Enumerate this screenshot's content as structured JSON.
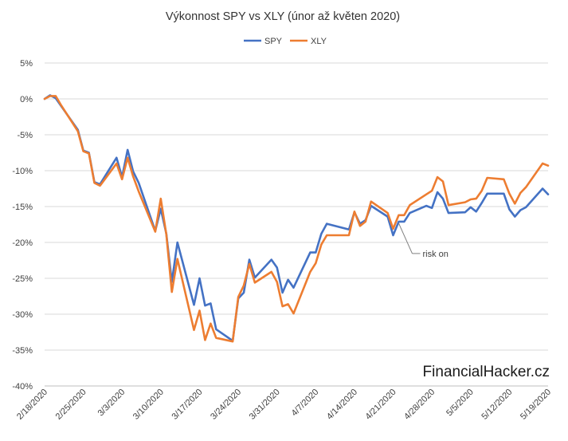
{
  "chart_data": {
    "type": "line",
    "title": "Výkonnost  SPY vs XLY (únor až květen 2020)",
    "xlabel": "",
    "ylabel": "",
    "ylim": [
      -40,
      5
    ],
    "yticks": [
      "5%",
      "0%",
      "-5%",
      "-10%",
      "-15%",
      "-20%",
      "-25%",
      "-30%",
      "-35%",
      "-40%"
    ],
    "x_tick_labels": [
      "2/18/2020",
      "2/25/2020",
      "3/3/2020",
      "3/10/2020",
      "3/17/2020",
      "3/24/2020",
      "3/31/2020",
      "4/7/2020",
      "4/14/2020",
      "4/21/2020",
      "4/28/2020",
      "5/5/2020",
      "5/12/2020",
      "5/19/2020"
    ],
    "x_range": [
      "2/18/2020",
      "5/19/2020"
    ],
    "grid": true,
    "legend_position": "top",
    "series": [
      {
        "name": "SPY",
        "color": "#4472C4",
        "points": [
          [
            "2/18/2020",
            0.0
          ],
          [
            "2/19/2020",
            0.5
          ],
          [
            "2/20/2020",
            0.1
          ],
          [
            "2/21/2020",
            -1.0
          ],
          [
            "2/24/2020",
            -4.3
          ],
          [
            "2/25/2020",
            -7.2
          ],
          [
            "2/26/2020",
            -7.5
          ],
          [
            "2/27/2020",
            -11.6
          ],
          [
            "2/28/2020",
            -11.9
          ],
          [
            "3/2/2020",
            -8.2
          ],
          [
            "3/3/2020",
            -10.9
          ],
          [
            "3/4/2020",
            -7.1
          ],
          [
            "3/5/2020",
            -10.1
          ],
          [
            "3/6/2020",
            -11.7
          ],
          [
            "3/9/2020",
            -18.4
          ],
          [
            "3/10/2020",
            -15.3
          ],
          [
            "3/11/2020",
            -18.8
          ],
          [
            "3/12/2020",
            -25.5
          ],
          [
            "3/13/2020",
            -20.0
          ],
          [
            "3/16/2020",
            -28.7
          ],
          [
            "3/17/2020",
            -25.0
          ],
          [
            "3/18/2020",
            -28.8
          ],
          [
            "3/19/2020",
            -28.5
          ],
          [
            "3/20/2020",
            -32.1
          ],
          [
            "3/23/2020",
            -33.7
          ],
          [
            "3/24/2020",
            -27.8
          ],
          [
            "3/25/2020",
            -27.0
          ],
          [
            "3/26/2020",
            -22.4
          ],
          [
            "3/27/2020",
            -24.9
          ],
          [
            "3/30/2020",
            -22.4
          ],
          [
            "3/31/2020",
            -23.5
          ],
          [
            "4/1/2020",
            -27.0
          ],
          [
            "4/2/2020",
            -25.2
          ],
          [
            "4/3/2020",
            -26.3
          ],
          [
            "4/6/2020",
            -21.4
          ],
          [
            "4/7/2020",
            -21.4
          ],
          [
            "4/8/2020",
            -18.8
          ],
          [
            "4/9/2020",
            -17.4
          ],
          [
            "4/13/2020",
            -18.2
          ],
          [
            "4/14/2020",
            -15.8
          ],
          [
            "4/15/2020",
            -17.4
          ],
          [
            "4/16/2020",
            -16.9
          ],
          [
            "4/17/2020",
            -14.9
          ],
          [
            "4/20/2020",
            -16.4
          ],
          [
            "4/21/2020",
            -19.0
          ],
          [
            "4/22/2020",
            -17.1
          ],
          [
            "4/23/2020",
            -17.1
          ],
          [
            "4/24/2020",
            -15.9
          ],
          [
            "4/27/2020",
            -14.9
          ],
          [
            "4/28/2020",
            -15.2
          ],
          [
            "4/29/2020",
            -13.0
          ],
          [
            "4/30/2020",
            -13.9
          ],
          [
            "5/1/2020",
            -15.9
          ],
          [
            "5/4/2020",
            -15.8
          ],
          [
            "5/5/2020",
            -15.1
          ],
          [
            "5/6/2020",
            -15.7
          ],
          [
            "5/7/2020",
            -14.5
          ],
          [
            "5/8/2020",
            -13.2
          ],
          [
            "5/11/2020",
            -13.2
          ],
          [
            "5/12/2020",
            -15.4
          ],
          [
            "5/13/2020",
            -16.4
          ],
          [
            "5/14/2020",
            -15.5
          ],
          [
            "5/15/2020",
            -15.1
          ],
          [
            "5/18/2020",
            -12.5
          ],
          [
            "5/19/2020",
            -13.3
          ]
        ]
      },
      {
        "name": "XLY",
        "color": "#ED7D31",
        "points": [
          [
            "2/18/2020",
            0.0
          ],
          [
            "2/19/2020",
            0.4
          ],
          [
            "2/20/2020",
            0.4
          ],
          [
            "2/21/2020",
            -0.9
          ],
          [
            "2/24/2020",
            -4.5
          ],
          [
            "2/25/2020",
            -7.3
          ],
          [
            "2/26/2020",
            -7.6
          ],
          [
            "2/27/2020",
            -11.7
          ],
          [
            "2/28/2020",
            -12.1
          ],
          [
            "3/2/2020",
            -9.0
          ],
          [
            "3/3/2020",
            -11.2
          ],
          [
            "3/4/2020",
            -8.2
          ],
          [
            "3/5/2020",
            -10.8
          ],
          [
            "3/6/2020",
            -12.9
          ],
          [
            "3/9/2020",
            -18.5
          ],
          [
            "3/10/2020",
            -13.9
          ],
          [
            "3/11/2020",
            -18.9
          ],
          [
            "3/12/2020",
            -26.9
          ],
          [
            "3/13/2020",
            -22.3
          ],
          [
            "3/16/2020",
            -32.2
          ],
          [
            "3/17/2020",
            -29.5
          ],
          [
            "3/18/2020",
            -33.6
          ],
          [
            "3/19/2020",
            -31.3
          ],
          [
            "3/20/2020",
            -33.3
          ],
          [
            "3/23/2020",
            -33.8
          ],
          [
            "3/24/2020",
            -27.6
          ],
          [
            "3/25/2020",
            -26.0
          ],
          [
            "3/26/2020",
            -23.0
          ],
          [
            "3/27/2020",
            -25.6
          ],
          [
            "3/30/2020",
            -24.1
          ],
          [
            "3/31/2020",
            -25.5
          ],
          [
            "4/1/2020",
            -28.9
          ],
          [
            "4/2/2020",
            -28.6
          ],
          [
            "4/3/2020",
            -29.9
          ],
          [
            "4/6/2020",
            -24.1
          ],
          [
            "4/7/2020",
            -22.9
          ],
          [
            "4/8/2020",
            -20.3
          ],
          [
            "4/9/2020",
            -19.0
          ],
          [
            "4/13/2020",
            -19.0
          ],
          [
            "4/14/2020",
            -15.7
          ],
          [
            "4/15/2020",
            -17.7
          ],
          [
            "4/16/2020",
            -17.1
          ],
          [
            "4/17/2020",
            -14.3
          ],
          [
            "4/20/2020",
            -15.9
          ],
          [
            "4/21/2020",
            -18.1
          ],
          [
            "4/22/2020",
            -16.2
          ],
          [
            "4/23/2020",
            -16.2
          ],
          [
            "4/24/2020",
            -14.8
          ],
          [
            "4/27/2020",
            -13.3
          ],
          [
            "4/28/2020",
            -12.8
          ],
          [
            "4/29/2020",
            -10.9
          ],
          [
            "4/30/2020",
            -11.5
          ],
          [
            "5/1/2020",
            -14.8
          ],
          [
            "5/4/2020",
            -14.4
          ],
          [
            "5/5/2020",
            -14.0
          ],
          [
            "5/6/2020",
            -13.9
          ],
          [
            "5/7/2020",
            -12.8
          ],
          [
            "5/8/2020",
            -11.0
          ],
          [
            "5/11/2020",
            -11.2
          ],
          [
            "5/12/2020",
            -13.2
          ],
          [
            "5/13/2020",
            -14.6
          ],
          [
            "5/14/2020",
            -13.1
          ],
          [
            "5/15/2020",
            -12.3
          ],
          [
            "5/18/2020",
            -9.0
          ],
          [
            "5/19/2020",
            -9.3
          ]
        ]
      }
    ],
    "annotations": [
      {
        "text": "risk on",
        "date": "4/22/2020",
        "value": -17.1
      }
    ]
  },
  "watermark": "FinancialHacker.cz"
}
